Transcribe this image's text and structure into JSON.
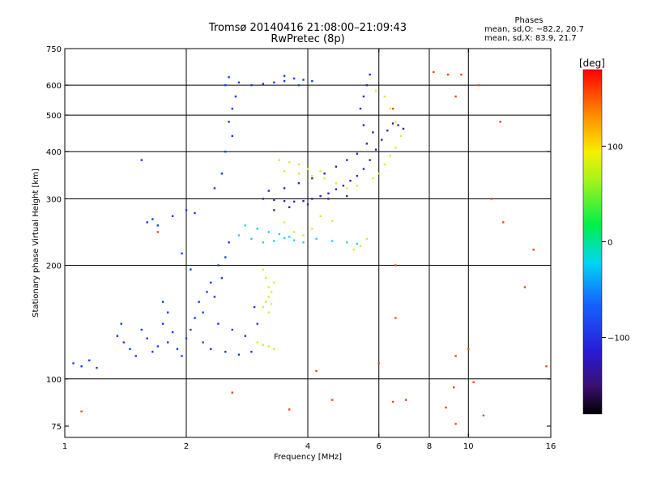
{
  "header": {
    "title_line1": "Tromsø 20140416 21:08:00–21:09:43",
    "title_line2": "RwPretec (8p)"
  },
  "stats": {
    "heading": "Phases",
    "line_o": "mean, sd,O: −82.2, 20.7",
    "line_x": "mean, sd,X:  83.9, 21.7"
  },
  "chart_data": {
    "type": "scatter",
    "title": "Tromsø 20140416 21:08:00–21:09:43",
    "subtitle": "RwPretec (8p)",
    "xlabel": "Frequency [MHz]",
    "ylabel": "Stationary phase Virtual Height [km]",
    "x_scale": "log",
    "y_scale": "log",
    "xlim": [
      1,
      16
    ],
    "ylim": [
      70,
      750
    ],
    "x_ticks": [
      1,
      2,
      4,
      6,
      8,
      10,
      16
    ],
    "y_ticks": [
      75,
      100,
      200,
      300,
      400,
      500,
      600,
      750
    ],
    "x_gridlines": [
      2,
      4,
      6,
      8,
      10
    ],
    "y_gridlines": [
      100,
      200,
      300,
      400,
      500,
      600
    ],
    "colorbar": {
      "label": "[deg]",
      "range": [
        -180,
        180
      ],
      "ticks": [
        100,
        0,
        -100
      ]
    },
    "series": [
      {
        "values": [
          [
            1.05,
            110
          ],
          [
            1.1,
            108
          ],
          [
            1.15,
            112
          ],
          [
            1.2,
            107
          ],
          [
            1.35,
            130
          ],
          [
            1.4,
            125
          ],
          [
            1.38,
            140
          ],
          [
            1.45,
            120
          ],
          [
            1.5,
            115
          ],
          [
            1.55,
            135
          ],
          [
            1.6,
            128
          ],
          [
            1.65,
            118
          ],
          [
            1.7,
            122
          ],
          [
            1.75,
            140
          ],
          [
            1.8,
            125
          ],
          [
            1.85,
            133
          ],
          [
            1.9,
            120
          ],
          [
            1.95,
            115
          ],
          [
            2.0,
            128
          ],
          [
            2.05,
            135
          ],
          [
            2.1,
            145
          ],
          [
            2.15,
            160
          ],
          [
            2.2,
            150
          ],
          [
            2.25,
            170
          ],
          [
            2.3,
            180
          ],
          [
            2.35,
            165
          ],
          [
            2.4,
            200
          ],
          [
            2.45,
            185
          ],
          [
            2.5,
            210
          ],
          [
            2.55,
            230
          ],
          [
            1.6,
            260
          ],
          [
            1.65,
            265
          ],
          [
            1.7,
            255
          ],
          [
            1.85,
            270
          ],
          [
            2.0,
            280
          ],
          [
            2.1,
            275
          ],
          [
            1.95,
            215
          ],
          [
            2.05,
            195
          ],
          [
            1.8,
            150
          ],
          [
            1.75,
            160
          ],
          [
            2.3,
            120
          ],
          [
            2.5,
            118
          ],
          [
            2.7,
            116
          ],
          [
            2.9,
            118
          ],
          [
            2.2,
            125
          ],
          [
            2.4,
            140
          ],
          [
            2.6,
            135
          ],
          [
            2.8,
            130
          ],
          [
            3.0,
            140
          ],
          [
            2.95,
            155
          ],
          [
            1.55,
            380
          ],
          [
            2.35,
            320
          ],
          [
            2.45,
            350
          ],
          [
            2.5,
            400
          ],
          [
            2.6,
            440
          ],
          [
            2.55,
            480
          ],
          [
            2.6,
            520
          ],
          [
            2.65,
            560
          ],
          [
            2.5,
            600
          ],
          [
            2.55,
            630
          ],
          [
            2.7,
            610
          ],
          [
            2.9,
            600
          ],
          [
            3.1,
            605
          ],
          [
            3.3,
            610
          ],
          [
            3.5,
            615
          ],
          [
            3.7,
            625
          ],
          [
            3.9,
            620
          ],
          [
            4.1,
            615
          ],
          [
            3.5,
            635
          ],
          [
            3.8,
            600
          ]
        ]
      },
      {
        "values": [
          [
            3.1,
            300
          ],
          [
            3.3,
            298
          ],
          [
            3.5,
            296
          ],
          [
            3.7,
            295
          ],
          [
            3.9,
            296
          ],
          [
            4.1,
            300
          ],
          [
            4.3,
            305
          ],
          [
            4.5,
            310
          ],
          [
            4.7,
            318
          ],
          [
            4.9,
            325
          ],
          [
            5.1,
            335
          ],
          [
            5.3,
            345
          ],
          [
            5.5,
            360
          ],
          [
            5.7,
            380
          ],
          [
            5.9,
            405
          ],
          [
            6.1,
            430
          ],
          [
            6.3,
            455
          ],
          [
            6.5,
            475
          ],
          [
            6.7,
            470
          ],
          [
            6.9,
            460
          ],
          [
            3.2,
            315
          ],
          [
            3.5,
            320
          ],
          [
            3.8,
            330
          ],
          [
            4.1,
            340
          ],
          [
            4.4,
            350
          ],
          [
            4.7,
            365
          ],
          [
            5.0,
            380
          ],
          [
            5.3,
            395
          ],
          [
            5.6,
            420
          ],
          [
            5.8,
            450
          ],
          [
            5.5,
            470
          ],
          [
            5.4,
            520
          ],
          [
            5.5,
            560
          ],
          [
            5.6,
            600
          ],
          [
            5.7,
            640
          ],
          [
            3.3,
            280
          ],
          [
            3.6,
            285
          ],
          [
            4.0,
            290
          ],
          [
            4.5,
            300
          ],
          [
            5.0,
            305
          ]
        ]
      },
      {
        "values": [
          [
            2.7,
            240
          ],
          [
            2.9,
            235
          ],
          [
            3.1,
            230
          ],
          [
            3.3,
            232
          ],
          [
            3.5,
            236
          ],
          [
            3.7,
            233
          ],
          [
            3.9,
            230
          ],
          [
            4.2,
            235
          ],
          [
            4.6,
            232
          ],
          [
            5.0,
            230
          ],
          [
            5.3,
            228
          ],
          [
            2.8,
            255
          ],
          [
            3.0,
            250
          ],
          [
            3.2,
            245
          ],
          [
            3.4,
            242
          ],
          [
            3.6,
            238
          ]
        ]
      },
      {
        "values": [
          [
            3.1,
            195
          ],
          [
            3.15,
            185
          ],
          [
            3.2,
            175
          ],
          [
            3.25,
            170
          ],
          [
            3.2,
            165
          ],
          [
            3.15,
            160
          ],
          [
            3.1,
            155
          ],
          [
            3.2,
            150
          ],
          [
            3.25,
            158
          ],
          [
            3.3,
            180
          ],
          [
            3.0,
            125
          ],
          [
            3.1,
            123
          ],
          [
            3.2,
            122
          ],
          [
            3.3,
            120
          ],
          [
            3.5,
            355
          ],
          [
            3.8,
            350
          ],
          [
            4.1,
            345
          ],
          [
            4.4,
            340
          ],
          [
            4.7,
            330
          ],
          [
            5.0,
            320
          ],
          [
            5.3,
            325
          ],
          [
            3.4,
            380
          ],
          [
            3.6,
            375
          ],
          [
            3.8,
            370
          ],
          [
            4.0,
            360
          ],
          [
            4.3,
            355
          ],
          [
            3.5,
            260
          ],
          [
            3.7,
            245
          ],
          [
            3.9,
            240
          ],
          [
            4.1,
            250
          ],
          [
            5.2,
            220
          ],
          [
            5.4,
            225
          ],
          [
            5.6,
            235
          ],
          [
            4.3,
            270
          ],
          [
            4.6,
            262
          ],
          [
            5.8,
            340
          ],
          [
            6.0,
            350
          ],
          [
            6.2,
            370
          ],
          [
            6.4,
            390
          ],
          [
            6.6,
            410
          ],
          [
            6.2,
            560
          ],
          [
            6.4,
            520
          ],
          [
            6.6,
            480
          ],
          [
            6.8,
            440
          ],
          [
            5.9,
            580
          ]
        ]
      },
      {
        "values": [
          [
            1.1,
            82
          ],
          [
            1.7,
            245
          ],
          [
            2.6,
            92
          ],
          [
            3.6,
            83
          ],
          [
            4.6,
            88
          ],
          [
            6.5,
            87
          ],
          [
            7.0,
            88
          ],
          [
            8.8,
            84
          ],
          [
            9.2,
            95
          ],
          [
            9.3,
            76
          ],
          [
            9.3,
            115
          ],
          [
            10.0,
            120
          ],
          [
            10.3,
            98
          ],
          [
            10.9,
            80
          ],
          [
            11.4,
            300
          ],
          [
            12.0,
            480
          ],
          [
            12.2,
            260
          ],
          [
            14.5,
            220
          ],
          [
            13.8,
            175
          ],
          [
            15.6,
            108
          ],
          [
            8.2,
            650
          ],
          [
            8.9,
            640
          ],
          [
            9.3,
            560
          ],
          [
            9.6,
            640
          ],
          [
            10.6,
            600
          ],
          [
            6.5,
            520
          ],
          [
            6.6,
            200
          ],
          [
            6.6,
            145
          ],
          [
            4.2,
            105
          ],
          [
            6.0,
            110
          ]
        ]
      }
    ],
    "series_colors": [
      "#0f3cf0",
      "#3d1fb4",
      "#25d0e6",
      "#d8ec3a",
      "#e84a14"
    ]
  }
}
